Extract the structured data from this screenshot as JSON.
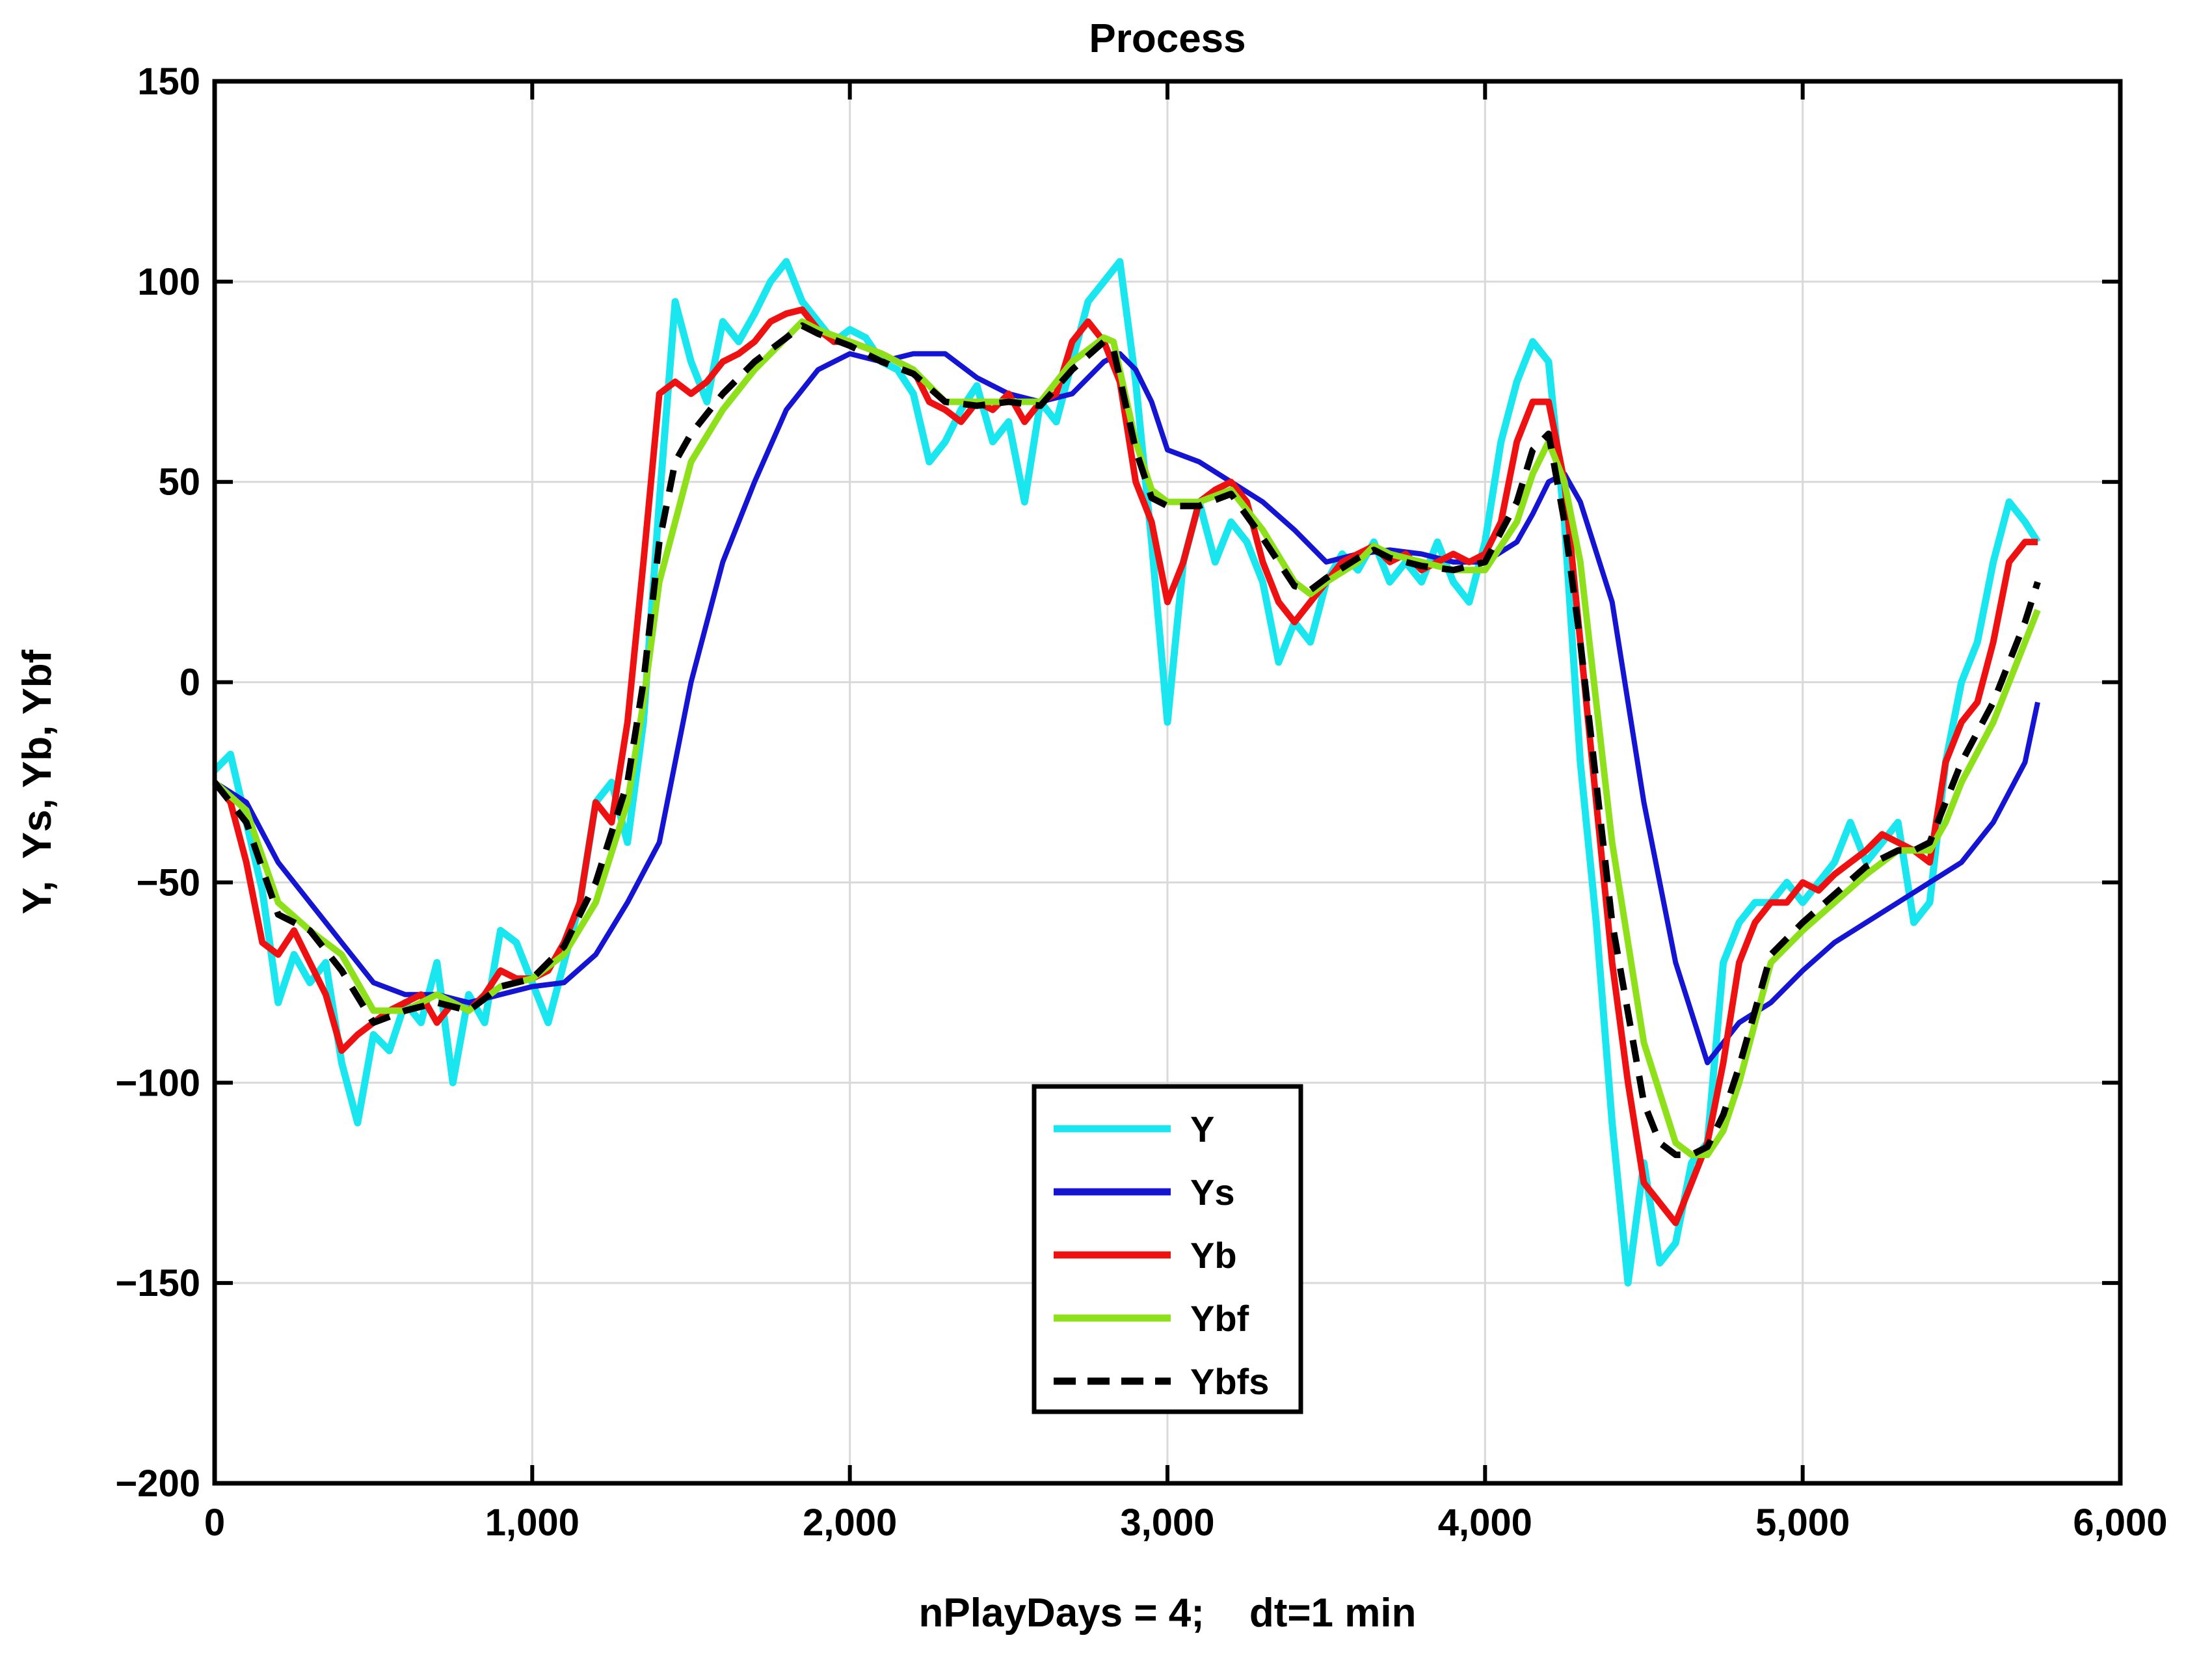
{
  "chart_data": {
    "type": "line",
    "title": "Process",
    "xlabel": "nPlayDays = 4;    dt=1 min",
    "ylabel": "Y,  Ys, Yb, Ybf",
    "xlim": [
      0,
      6000
    ],
    "ylim": [
      -200,
      150
    ],
    "grid": true,
    "legend_position": "bottom-center",
    "x_ticks": [
      0,
      1000,
      2000,
      3000,
      4000,
      5000,
      6000
    ],
    "x_tick_labels": [
      "0",
      "1,000",
      "2,000",
      "3,000",
      "4,000",
      "5,000",
      "6,000"
    ],
    "y_ticks": [
      150,
      100,
      50,
      0,
      -50,
      -100,
      -150,
      -200
    ],
    "y_tick_labels": [
      "150",
      "100",
      "50",
      "0",
      "−50",
      "−100",
      "−150",
      "−200"
    ],
    "series": [
      {
        "name": "Y",
        "color": "#19e6ee",
        "style": "solid",
        "x": [
          0,
          50,
          100,
          150,
          200,
          250,
          300,
          350,
          400,
          450,
          500,
          550,
          600,
          650,
          700,
          750,
          800,
          850,
          900,
          950,
          1000,
          1050,
          1100,
          1150,
          1200,
          1250,
          1300,
          1350,
          1400,
          1450,
          1500,
          1550,
          1600,
          1650,
          1700,
          1750,
          1800,
          1850,
          1900,
          1950,
          2000,
          2050,
          2100,
          2150,
          2200,
          2250,
          2300,
          2350,
          2400,
          2450,
          2500,
          2550,
          2600,
          2650,
          2700,
          2750,
          2800,
          2850,
          2900,
          2950,
          3000,
          3050,
          3100,
          3150,
          3200,
          3250,
          3300,
          3350,
          3400,
          3450,
          3500,
          3550,
          3600,
          3650,
          3700,
          3750,
          3800,
          3850,
          3900,
          3950,
          4000,
          4050,
          4100,
          4150,
          4200,
          4250,
          4300,
          4350,
          4400,
          4450,
          4500,
          4550,
          4600,
          4650,
          4700,
          4750,
          4800,
          4850,
          4900,
          4950,
          5000,
          5050,
          5100,
          5150,
          5200,
          5250,
          5300,
          5350,
          5400,
          5450,
          5500,
          5550,
          5600,
          5650,
          5700,
          5740
        ],
        "values": [
          -22,
          -18,
          -35,
          -52,
          -80,
          -68,
          -75,
          -70,
          -95,
          -110,
          -88,
          -92,
          -80,
          -85,
          -70,
          -100,
          -78,
          -85,
          -62,
          -65,
          -75,
          -85,
          -70,
          -55,
          -30,
          -25,
          -40,
          -10,
          45,
          95,
          80,
          70,
          90,
          85,
          92,
          100,
          105,
          95,
          90,
          85,
          88,
          86,
          80,
          78,
          72,
          55,
          60,
          68,
          74,
          60,
          65,
          45,
          70,
          65,
          80,
          95,
          100,
          105,
          75,
          35,
          -10,
          30,
          45,
          30,
          40,
          35,
          25,
          5,
          15,
          10,
          25,
          32,
          28,
          35,
          25,
          30,
          25,
          35,
          25,
          20,
          35,
          60,
          75,
          85,
          80,
          40,
          -20,
          -60,
          -110,
          -150,
          -120,
          -145,
          -140,
          -120,
          -115,
          -70,
          -60,
          -55,
          -55,
          -50,
          -55,
          -50,
          -45,
          -35,
          -45,
          -40,
          -35,
          -60,
          -55,
          -20,
          0,
          10,
          30,
          45,
          40,
          35
        ]
      },
      {
        "name": "Ys",
        "color": "#1414d2",
        "style": "solid",
        "x": [
          0,
          100,
          200,
          300,
          400,
          500,
          600,
          700,
          800,
          900,
          1000,
          1100,
          1200,
          1300,
          1400,
          1450,
          1500,
          1600,
          1700,
          1800,
          1900,
          2000,
          2100,
          2200,
          2300,
          2400,
          2500,
          2600,
          2700,
          2800,
          2850,
          2900,
          2950,
          3000,
          3100,
          3200,
          3300,
          3400,
          3500,
          3600,
          3700,
          3800,
          3900,
          4000,
          4100,
          4150,
          4200,
          4250,
          4300,
          4400,
          4500,
          4600,
          4700,
          4750,
          4800,
          4900,
          5000,
          5100,
          5200,
          5300,
          5400,
          5500,
          5600,
          5700,
          5740
        ],
        "values": [
          -25,
          -30,
          -45,
          -55,
          -65,
          -75,
          -78,
          -78,
          -80,
          -78,
          -76,
          -75,
          -68,
          -55,
          -40,
          -20,
          0,
          30,
          50,
          68,
          78,
          82,
          80,
          82,
          82,
          76,
          72,
          70,
          72,
          80,
          82,
          78,
          70,
          58,
          55,
          50,
          45,
          38,
          30,
          32,
          33,
          32,
          30,
          30,
          35,
          42,
          50,
          52,
          45,
          20,
          -30,
          -70,
          -95,
          -90,
          -85,
          -80,
          -72,
          -65,
          -60,
          -55,
          -50,
          -45,
          -35,
          -20,
          -5
        ]
      },
      {
        "name": "Yb",
        "color": "#ee1111",
        "style": "solid",
        "x": [
          0,
          50,
          100,
          150,
          200,
          250,
          300,
          350,
          400,
          450,
          500,
          550,
          600,
          650,
          700,
          750,
          800,
          850,
          900,
          950,
          1000,
          1050,
          1100,
          1150,
          1200,
          1250,
          1300,
          1350,
          1400,
          1450,
          1500,
          1550,
          1600,
          1650,
          1700,
          1750,
          1800,
          1850,
          1900,
          1950,
          2000,
          2100,
          2200,
          2250,
          2300,
          2350,
          2400,
          2450,
          2500,
          2550,
          2600,
          2650,
          2700,
          2750,
          2800,
          2850,
          2900,
          2950,
          3000,
          3050,
          3100,
          3150,
          3200,
          3250,
          3300,
          3350,
          3400,
          3450,
          3500,
          3550,
          3600,
          3650,
          3700,
          3750,
          3800,
          3850,
          3900,
          3950,
          4000,
          4050,
          4100,
          4150,
          4200,
          4250,
          4300,
          4350,
          4400,
          4450,
          4500,
          4550,
          4600,
          4650,
          4700,
          4750,
          4800,
          4850,
          4900,
          4950,
          5000,
          5050,
          5100,
          5150,
          5200,
          5250,
          5300,
          5350,
          5400,
          5450,
          5500,
          5550,
          5600,
          5650,
          5700,
          5740
        ],
        "values": [
          -25,
          -30,
          -45,
          -65,
          -68,
          -62,
          -70,
          -78,
          -92,
          -88,
          -85,
          -82,
          -80,
          -78,
          -85,
          -80,
          -82,
          -78,
          -72,
          -74,
          -74,
          -72,
          -65,
          -55,
          -30,
          -35,
          -10,
          30,
          72,
          75,
          72,
          75,
          80,
          82,
          85,
          90,
          92,
          93,
          88,
          85,
          85,
          82,
          78,
          70,
          68,
          65,
          70,
          68,
          72,
          65,
          70,
          72,
          85,
          90,
          85,
          75,
          50,
          40,
          20,
          30,
          45,
          48,
          50,
          45,
          30,
          20,
          15,
          20,
          25,
          30,
          32,
          34,
          30,
          32,
          28,
          30,
          32,
          30,
          32,
          40,
          60,
          70,
          70,
          50,
          10,
          -30,
          -70,
          -100,
          -125,
          -130,
          -135,
          -125,
          -115,
          -95,
          -70,
          -60,
          -55,
          -55,
          -50,
          -52,
          -48,
          -45,
          -42,
          -38,
          -40,
          -42,
          -45,
          -20,
          -10,
          -5,
          10,
          30,
          35,
          35
        ]
      },
      {
        "name": "Ybf",
        "color": "#8ee11a",
        "style": "solid",
        "x": [
          0,
          100,
          200,
          300,
          400,
          500,
          600,
          700,
          800,
          900,
          1000,
          1100,
          1200,
          1300,
          1350,
          1400,
          1450,
          1500,
          1600,
          1700,
          1800,
          1850,
          1900,
          2000,
          2100,
          2200,
          2300,
          2400,
          2500,
          2600,
          2700,
          2800,
          2830,
          2900,
          2950,
          3000,
          3100,
          3200,
          3300,
          3400,
          3450,
          3500,
          3600,
          3650,
          3700,
          3800,
          3900,
          4000,
          4100,
          4150,
          4200,
          4250,
          4300,
          4400,
          4500,
          4600,
          4650,
          4700,
          4750,
          4800,
          4900,
          5000,
          5100,
          5200,
          5300,
          5350,
          5400,
          5450,
          5500,
          5600,
          5700,
          5740
        ],
        "values": [
          -25,
          -32,
          -55,
          -62,
          -68,
          -82,
          -82,
          -78,
          -82,
          -76,
          -74,
          -68,
          -55,
          -30,
          -5,
          25,
          40,
          55,
          68,
          78,
          86,
          90,
          88,
          85,
          82,
          78,
          70,
          70,
          70,
          70,
          80,
          86,
          85,
          60,
          48,
          45,
          45,
          48,
          38,
          25,
          22,
          25,
          30,
          34,
          32,
          30,
          28,
          28,
          40,
          52,
          60,
          50,
          30,
          -40,
          -90,
          -115,
          -118,
          -118,
          -112,
          -100,
          -70,
          -62,
          -55,
          -48,
          -42,
          -42,
          -42,
          -35,
          -25,
          -10,
          10,
          18
        ]
      },
      {
        "name": "Ybfs",
        "color": "#000000",
        "style": "dashed",
        "x": [
          0,
          100,
          200,
          300,
          400,
          500,
          600,
          700,
          800,
          900,
          1000,
          1100,
          1200,
          1300,
          1350,
          1400,
          1450,
          1500,
          1600,
          1700,
          1800,
          1850,
          1900,
          2000,
          2100,
          2200,
          2300,
          2400,
          2500,
          2600,
          2700,
          2800,
          2830,
          2900,
          2950,
          3000,
          3100,
          3200,
          3300,
          3400,
          3450,
          3500,
          3600,
          3650,
          3700,
          3800,
          3900,
          4000,
          4100,
          4150,
          4200,
          4250,
          4300,
          4400,
          4500,
          4550,
          4600,
          4650,
          4700,
          4750,
          4800,
          4900,
          5000,
          5100,
          5200,
          5300,
          5350,
          5400,
          5450,
          5500,
          5600,
          5700,
          5740
        ],
        "values": [
          -25,
          -35,
          -58,
          -62,
          -72,
          -85,
          -82,
          -80,
          -82,
          -76,
          -74,
          -66,
          -50,
          -25,
          0,
          35,
          55,
          62,
          72,
          80,
          86,
          89,
          87,
          84,
          80,
          77,
          70,
          69,
          70,
          69,
          78,
          85,
          83,
          58,
          46,
          44,
          44,
          47,
          36,
          24,
          23,
          26,
          31,
          33,
          31,
          29,
          28,
          30,
          45,
          58,
          62,
          40,
          10,
          -60,
          -105,
          -115,
          -118,
          -118,
          -116,
          -108,
          -96,
          -68,
          -60,
          -53,
          -46,
          -42,
          -42,
          -40,
          -30,
          -20,
          -5,
          15,
          25
        ]
      }
    ]
  }
}
